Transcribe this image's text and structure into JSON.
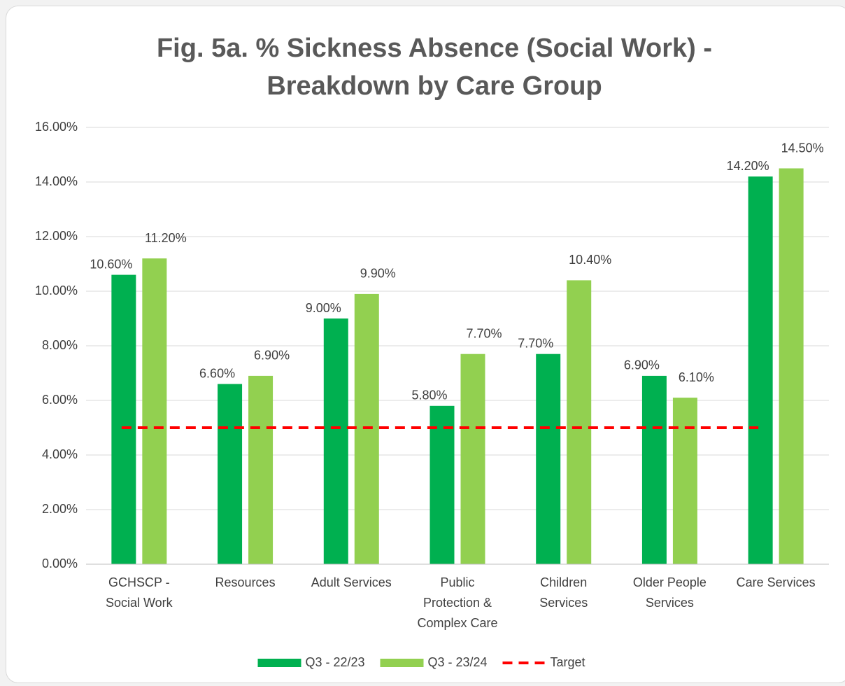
{
  "chart_data": {
    "type": "bar",
    "title": [
      "Fig. 5a. % Sickness Absence (Social Work) -",
      "Breakdown by Care Group"
    ],
    "categories": [
      "GCHSCP - Social Work",
      "Resources",
      "Adult Services",
      "Public Protection & Complex Care",
      "Children Services",
      "Older People Services",
      "Care Services"
    ],
    "series": [
      {
        "name": "Q3 - 22/23",
        "color": "#00b050",
        "values": [
          10.6,
          6.6,
          9.0,
          5.8,
          7.7,
          6.9,
          14.2
        ],
        "value_labels": [
          "10.60%",
          "6.60%",
          "9.00%",
          "5.80%",
          "7.70%",
          "6.90%",
          "14.20%"
        ]
      },
      {
        "name": "Q3 - 23/24",
        "color": "#92d050",
        "values": [
          11.2,
          6.9,
          9.9,
          7.7,
          10.4,
          6.1,
          14.5
        ],
        "value_labels": [
          "11.20%",
          "6.90%",
          "9.90%",
          "7.70%",
          "10.40%",
          "6.10%",
          "14.50%"
        ]
      },
      {
        "name": "Target",
        "color": "#ff0000",
        "type": "line",
        "dashed": true,
        "values": [
          5,
          5,
          5,
          5,
          5,
          5,
          5
        ]
      }
    ],
    "ylim": [
      0,
      16
    ],
    "yticks": [
      {
        "value": 0,
        "label": "0.00%"
      },
      {
        "value": 2,
        "label": "2.00%"
      },
      {
        "value": 4,
        "label": "4.00%"
      },
      {
        "value": 6,
        "label": "6.00%"
      },
      {
        "value": 8,
        "label": "8.00%"
      },
      {
        "value": 10,
        "label": "10.00%"
      },
      {
        "value": 12,
        "label": "12.00%"
      },
      {
        "value": 14,
        "label": "14.00%"
      },
      {
        "value": 16,
        "label": "16.00%"
      }
    ],
    "grid": true,
    "legend": "bottom"
  }
}
